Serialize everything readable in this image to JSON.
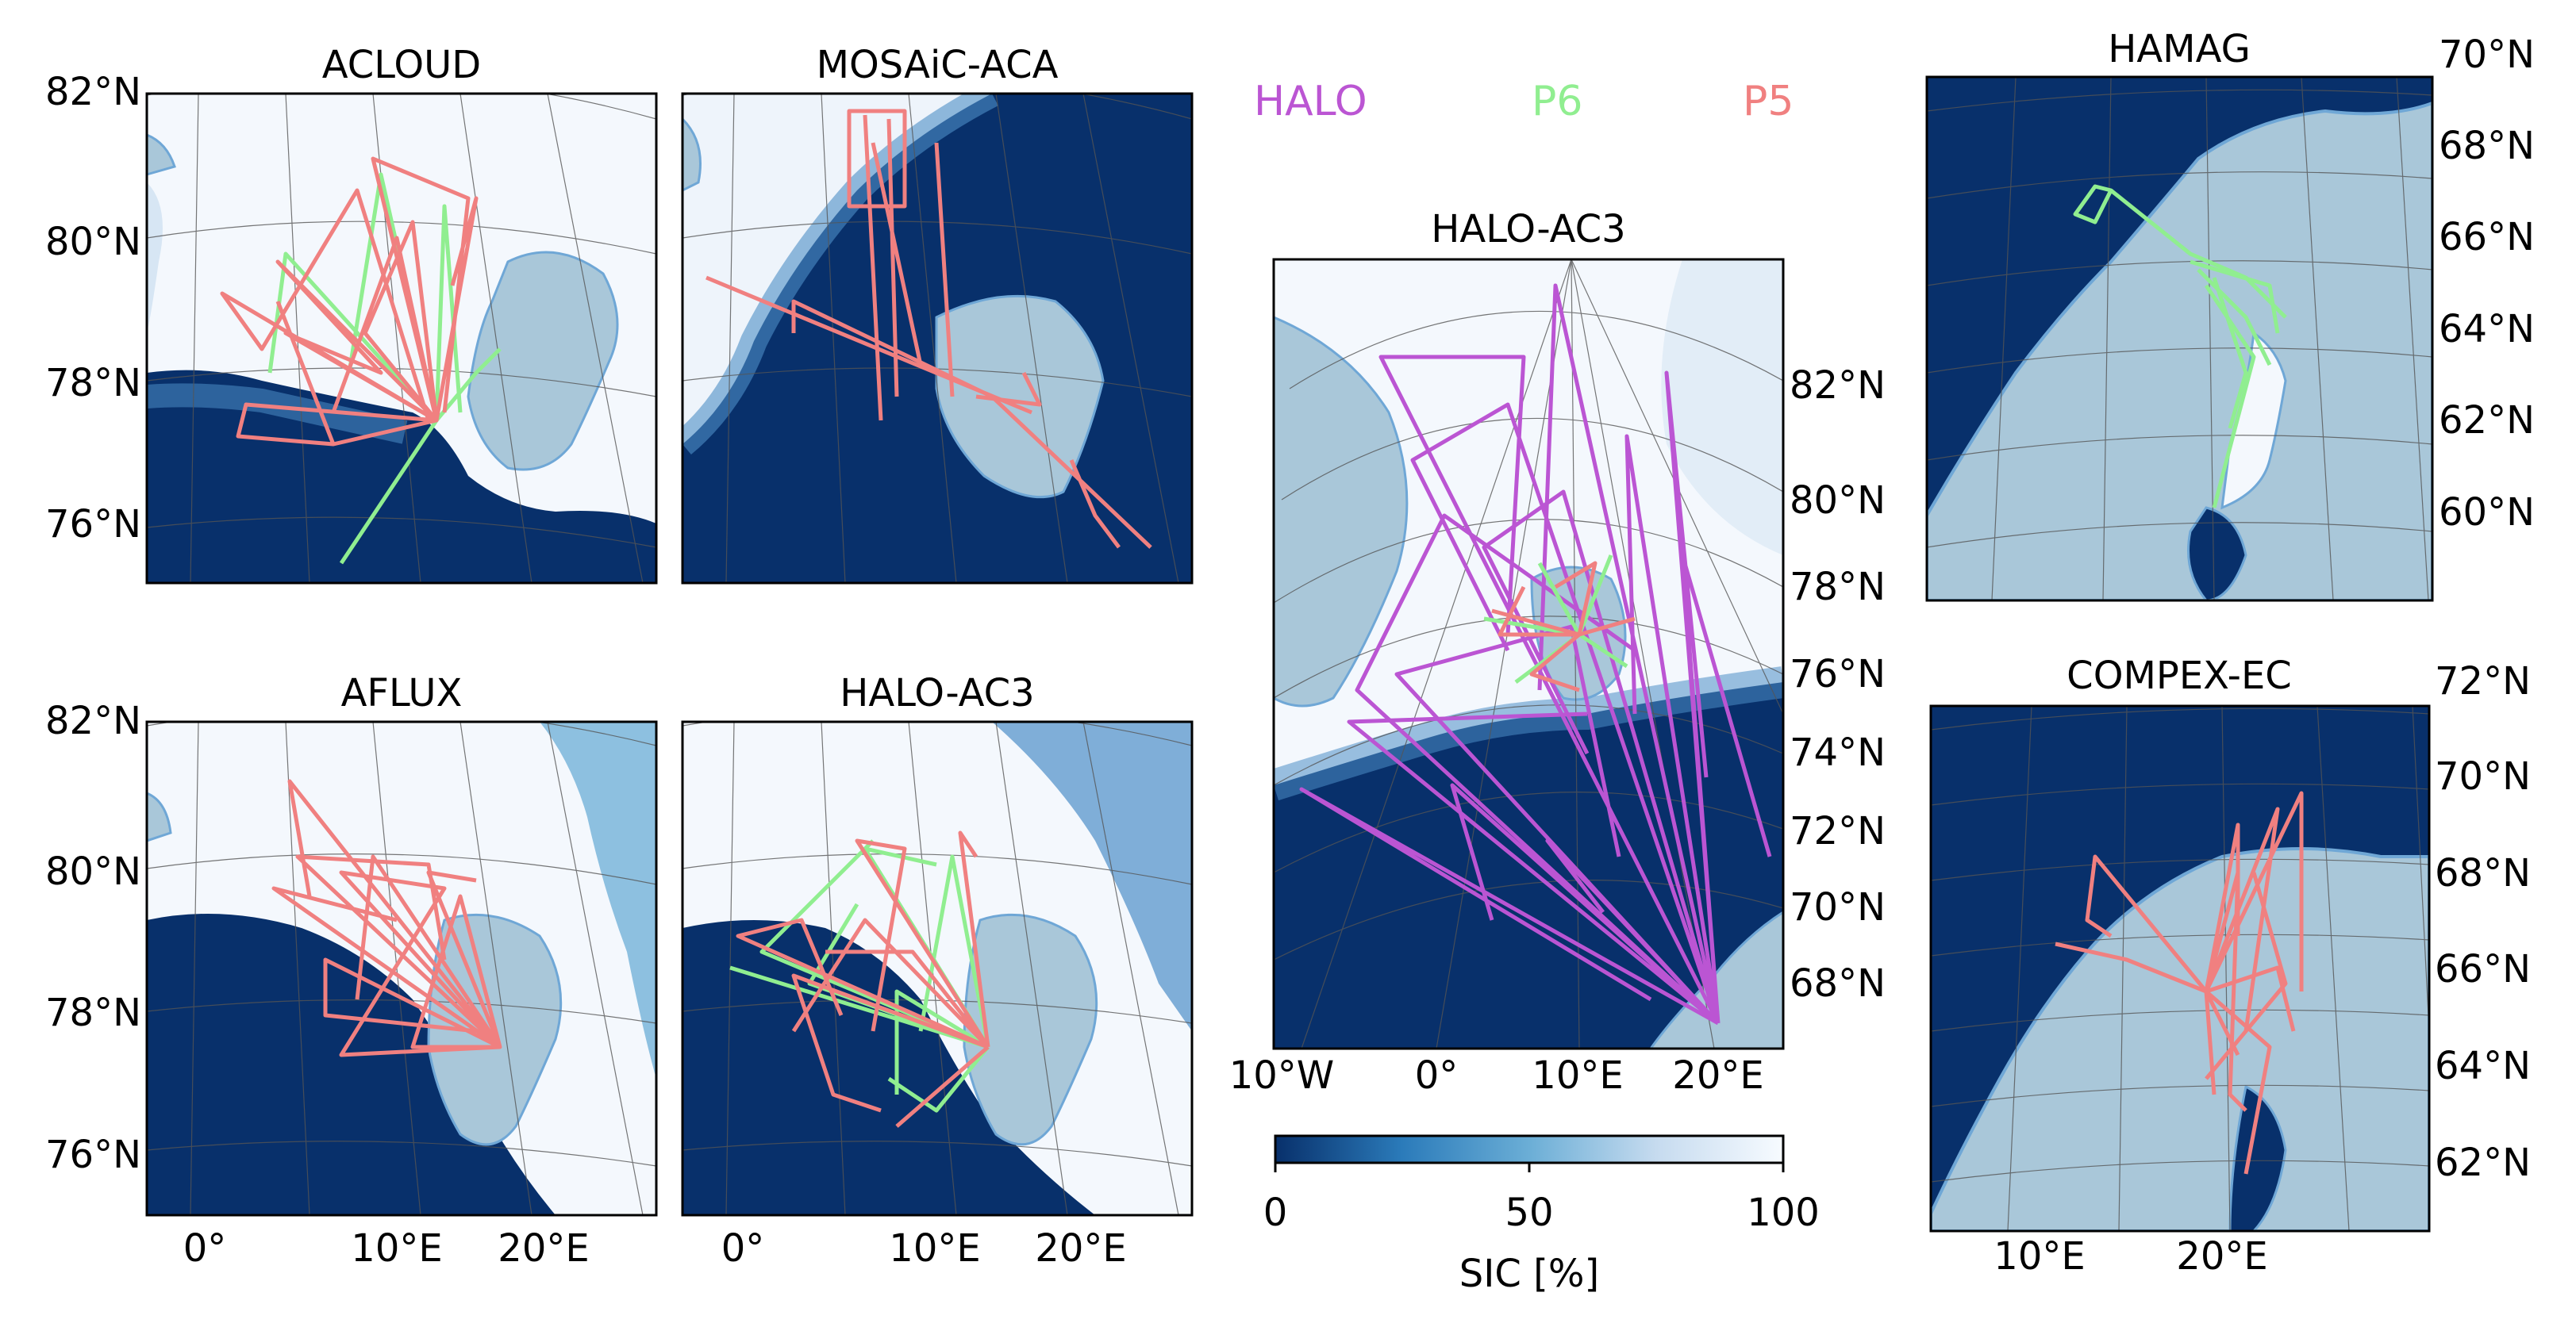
{
  "legend": [
    {
      "label": "HALO",
      "color": "#bb55d3"
    },
    {
      "label": "P6",
      "color": "#90ee90"
    },
    {
      "label": "P5",
      "color": "#f08080"
    }
  ],
  "colors": {
    "ocean": "#08306b",
    "land": "#a9c7d9",
    "coast": "#6fa7d6",
    "ice": "#f4f8fd"
  },
  "panels": {
    "acloud": {
      "title": "ACLOUD",
      "lat_ticks": [
        "82°N",
        "80°N",
        "78°N",
        "76°N"
      ]
    },
    "mosaic": {
      "title": "MOSAiC-ACA"
    },
    "aflux": {
      "title": "AFLUX",
      "lat_ticks": [
        "82°N",
        "80°N",
        "78°N",
        "76°N"
      ],
      "lon_ticks": [
        "0°",
        "10°E",
        "20°E"
      ]
    },
    "haloac3_small": {
      "title": "HALO-AC3",
      "lon_ticks": [
        "0°",
        "10°E",
        "20°E"
      ]
    },
    "haloac3_big": {
      "title": "HALO-AC3",
      "lat_ticks": [
        "82°N",
        "80°N",
        "78°N",
        "76°N",
        "74°N",
        "72°N",
        "70°N",
        "68°N"
      ],
      "lon_ticks": [
        "10°W",
        "0°",
        "10°E",
        "20°E"
      ]
    },
    "hamag": {
      "title": "HAMAG",
      "lat_ticks": [
        "70°N",
        "68°N",
        "66°N",
        "64°N",
        "62°N",
        "60°N"
      ]
    },
    "compex": {
      "title": "COMPEX-EC",
      "lat_ticks": [
        "72°N",
        "70°N",
        "68°N",
        "66°N",
        "64°N",
        "62°N"
      ],
      "lon_ticks": [
        "10°E",
        "20°E"
      ]
    }
  },
  "colorbar": {
    "label": "SIC [%]",
    "ticks": [
      "0",
      "50",
      "100"
    ],
    "range": [
      0,
      100
    ],
    "colormap": "Blues_r"
  }
}
